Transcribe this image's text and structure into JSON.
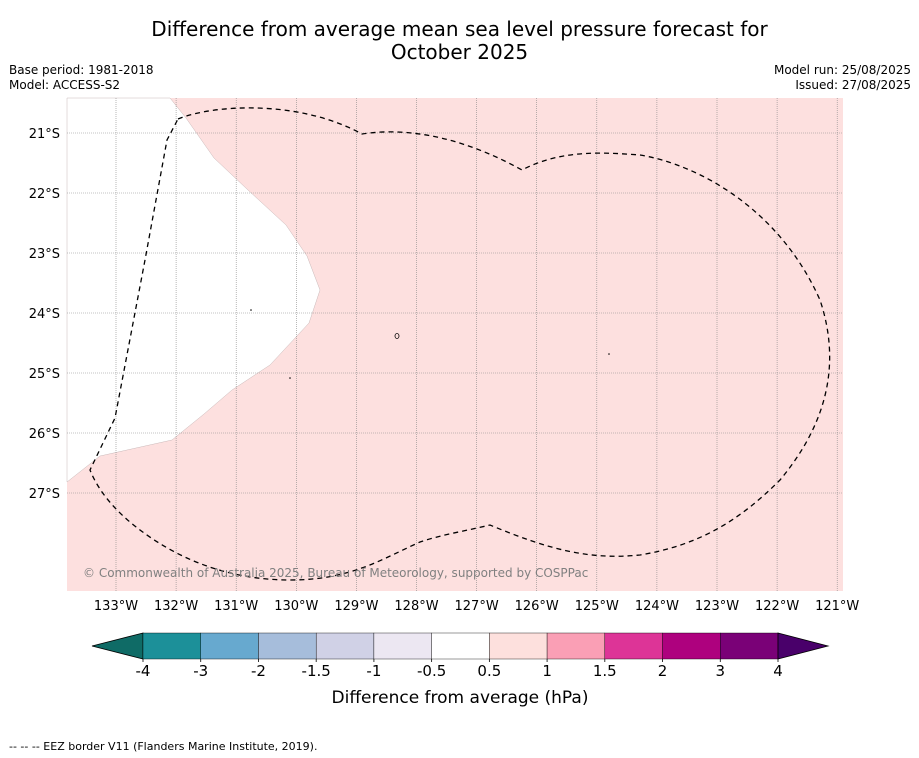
{
  "title_line1": "Difference from average mean sea level pressure forecast for",
  "title_line2": "October 2025",
  "meta_left": {
    "base_period": "Base period: 1981-2018",
    "model": "Model: ACCESS-S2"
  },
  "meta_right": {
    "model_run": "Model run: 25/08/2025",
    "issued": "Issued: 27/08/2025"
  },
  "map": {
    "lon_range": [
      -133.8,
      -120.8
    ],
    "lat_range": [
      -28.9,
      -20.6
    ],
    "lat_labels": [
      "21°S",
      "22°S",
      "23°S",
      "24°S",
      "25°S",
      "26°S",
      "27°S"
    ],
    "lon_labels": [
      "133°W",
      "132°W",
      "131°W",
      "130°W",
      "129°W",
      "128°W",
      "127°W",
      "126°W",
      "125°W",
      "124°W",
      "123°W",
      "122°W",
      "121°W"
    ],
    "fill_color": "#fde0df",
    "copyright": "© Commonwealth of Australia 2025, Bureau of Meteorology, supported by COSPPac"
  },
  "colorbar": {
    "title": "Difference from average (hPa)",
    "tick_labels": [
      "-4",
      "-3",
      "-2",
      "-1.5",
      "-1",
      "-0.5",
      "0.5",
      "1",
      "1.5",
      "2",
      "3",
      "4"
    ],
    "colors": [
      "#0f6b66",
      "#1c9099",
      "#67a9cf",
      "#a6bddb",
      "#d0d1e6",
      "#ece7f2",
      "#ffffff",
      "#fde0dd",
      "#fa9fb5",
      "#dd3497",
      "#ae017e",
      "#7a0177",
      "#49006a"
    ]
  },
  "footer": "--  --  -- EEZ border V11 (Flanders Marine Institute, 2019)."
}
